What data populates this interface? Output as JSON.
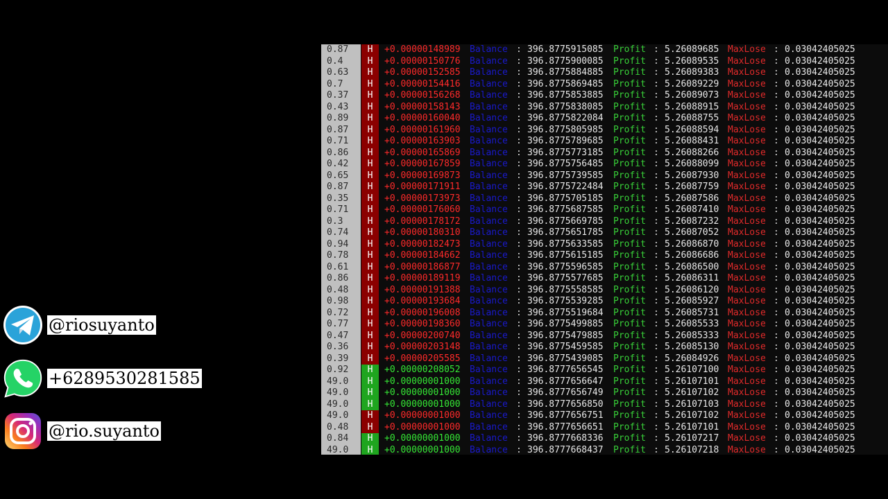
{
  "social": [
    {
      "icon": "telegram-icon",
      "handle": "@riosuyanto",
      "color": "#2aa3d9"
    },
    {
      "icon": "whatsapp-icon",
      "handle": "+6289530281585",
      "color": "#25d366"
    },
    {
      "icon": "instagram-icon",
      "handle": "@rio.suyanto",
      "color": "#d6249f"
    }
  ],
  "labels": {
    "balance": "Balance",
    "profit": "Profit",
    "maxlose": "MaxLose",
    "separator": ":"
  },
  "colors": {
    "loss": "#8b0000",
    "win": "#1fa51f",
    "balance_label": "#1a1acc",
    "profit_label": "#38d038",
    "maxlose_label": "#e02a2a"
  },
  "rows": [
    {
      "chance": "0.87",
      "hl": "H",
      "result": "loss",
      "amount": "+0.00000148989",
      "balance": "396.8775915085",
      "profit": "5.26089685",
      "maxlose": "0.03042405025"
    },
    {
      "chance": "0.4",
      "hl": "H",
      "result": "loss",
      "amount": "+0.00000150776",
      "balance": "396.8775900085",
      "profit": "5.26089535",
      "maxlose": "0.03042405025"
    },
    {
      "chance": "0.63",
      "hl": "H",
      "result": "loss",
      "amount": "+0.00000152585",
      "balance": "396.8775884885",
      "profit": "5.26089383",
      "maxlose": "0.03042405025"
    },
    {
      "chance": "0.7",
      "hl": "H",
      "result": "loss",
      "amount": "+0.00000154416",
      "balance": "396.8775869485",
      "profit": "5.26089229",
      "maxlose": "0.03042405025"
    },
    {
      "chance": "0.37",
      "hl": "H",
      "result": "loss",
      "amount": "+0.00000156268",
      "balance": "396.8775853885",
      "profit": "5.26089073",
      "maxlose": "0.03042405025"
    },
    {
      "chance": "0.43",
      "hl": "H",
      "result": "loss",
      "amount": "+0.00000158143",
      "balance": "396.8775838085",
      "profit": "5.26088915",
      "maxlose": "0.03042405025"
    },
    {
      "chance": "0.89",
      "hl": "H",
      "result": "loss",
      "amount": "+0.00000160040",
      "balance": "396.8775822084",
      "profit": "5.26088755",
      "maxlose": "0.03042405025"
    },
    {
      "chance": "0.87",
      "hl": "H",
      "result": "loss",
      "amount": "+0.00000161960",
      "balance": "396.8775805985",
      "profit": "5.26088594",
      "maxlose": "0.03042405025"
    },
    {
      "chance": "0.71",
      "hl": "H",
      "result": "loss",
      "amount": "+0.00000163903",
      "balance": "396.8775789685",
      "profit": "5.26088431",
      "maxlose": "0.03042405025"
    },
    {
      "chance": "0.86",
      "hl": "H",
      "result": "loss",
      "amount": "+0.00000165869",
      "balance": "396.8775773185",
      "profit": "5.26088266",
      "maxlose": "0.03042405025"
    },
    {
      "chance": "0.42",
      "hl": "H",
      "result": "loss",
      "amount": "+0.00000167859",
      "balance": "396.8775756485",
      "profit": "5.26088099",
      "maxlose": "0.03042405025"
    },
    {
      "chance": "0.65",
      "hl": "H",
      "result": "loss",
      "amount": "+0.00000169873",
      "balance": "396.8775739585",
      "profit": "5.26087930",
      "maxlose": "0.03042405025"
    },
    {
      "chance": "0.87",
      "hl": "H",
      "result": "loss",
      "amount": "+0.00000171911",
      "balance": "396.8775722484",
      "profit": "5.26087759",
      "maxlose": "0.03042405025"
    },
    {
      "chance": "0.35",
      "hl": "H",
      "result": "loss",
      "amount": "+0.00000173973",
      "balance": "396.8775705185",
      "profit": "5.26087586",
      "maxlose": "0.03042405025"
    },
    {
      "chance": "0.71",
      "hl": "H",
      "result": "loss",
      "amount": "+0.00000176060",
      "balance": "396.8775687585",
      "profit": "5.26087410",
      "maxlose": "0.03042405025"
    },
    {
      "chance": "0.3",
      "hl": "H",
      "result": "loss",
      "amount": "+0.00000178172",
      "balance": "396.8775669785",
      "profit": "5.26087232",
      "maxlose": "0.03042405025"
    },
    {
      "chance": "0.74",
      "hl": "H",
      "result": "loss",
      "amount": "+0.00000180310",
      "balance": "396.8775651785",
      "profit": "5.26087052",
      "maxlose": "0.03042405025"
    },
    {
      "chance": "0.94",
      "hl": "H",
      "result": "loss",
      "amount": "+0.00000182473",
      "balance": "396.8775633585",
      "profit": "5.26086870",
      "maxlose": "0.03042405025"
    },
    {
      "chance": "0.78",
      "hl": "H",
      "result": "loss",
      "amount": "+0.00000184662",
      "balance": "396.8775615185",
      "profit": "5.26086686",
      "maxlose": "0.03042405025"
    },
    {
      "chance": "0.61",
      "hl": "H",
      "result": "loss",
      "amount": "+0.00000186877",
      "balance": "396.8775596585",
      "profit": "5.26086500",
      "maxlose": "0.03042405025"
    },
    {
      "chance": "0.86",
      "hl": "H",
      "result": "loss",
      "amount": "+0.00000189119",
      "balance": "396.8775577685",
      "profit": "5.26086311",
      "maxlose": "0.03042405025"
    },
    {
      "chance": "0.48",
      "hl": "H",
      "result": "loss",
      "amount": "+0.00000191388",
      "balance": "396.8775558585",
      "profit": "5.26086120",
      "maxlose": "0.03042405025"
    },
    {
      "chance": "0.98",
      "hl": "H",
      "result": "loss",
      "amount": "+0.00000193684",
      "balance": "396.8775539285",
      "profit": "5.26085927",
      "maxlose": "0.03042405025"
    },
    {
      "chance": "0.72",
      "hl": "H",
      "result": "loss",
      "amount": "+0.00000196008",
      "balance": "396.8775519684",
      "profit": "5.26085731",
      "maxlose": "0.03042405025"
    },
    {
      "chance": "0.77",
      "hl": "H",
      "result": "loss",
      "amount": "+0.00000198360",
      "balance": "396.8775499885",
      "profit": "5.26085533",
      "maxlose": "0.03042405025"
    },
    {
      "chance": "0.47",
      "hl": "H",
      "result": "loss",
      "amount": "+0.00000200740",
      "balance": "396.8775479885",
      "profit": "5.26085333",
      "maxlose": "0.03042405025"
    },
    {
      "chance": "0.36",
      "hl": "H",
      "result": "loss",
      "amount": "+0.00000203148",
      "balance": "396.8775459585",
      "profit": "5.26085130",
      "maxlose": "0.03042405025"
    },
    {
      "chance": "0.39",
      "hl": "H",
      "result": "loss",
      "amount": "+0.00000205585",
      "balance": "396.8775439085",
      "profit": "5.26084926",
      "maxlose": "0.03042405025"
    },
    {
      "chance": "0.92",
      "hl": "H",
      "result": "win",
      "amount": "+0.00000208052",
      "balance": "396.8777656545",
      "profit": "5.26107100",
      "maxlose": "0.03042405025"
    },
    {
      "chance": "49.0",
      "hl": "H",
      "result": "win",
      "amount": "+0.00000001000",
      "balance": "396.8777656647",
      "profit": "5.26107101",
      "maxlose": "0.03042405025"
    },
    {
      "chance": "49.0",
      "hl": "H",
      "result": "win",
      "amount": "+0.00000001000",
      "balance": "396.8777656749",
      "profit": "5.26107102",
      "maxlose": "0.03042405025"
    },
    {
      "chance": "49.0",
      "hl": "H",
      "result": "win",
      "amount": "+0.00000001000",
      "balance": "396.8777656850",
      "profit": "5.26107103",
      "maxlose": "0.03042405025"
    },
    {
      "chance": "49.0",
      "hl": "H",
      "result": "loss",
      "amount": "+0.00000001000",
      "balance": "396.8777656751",
      "profit": "5.26107102",
      "maxlose": "0.03042405025"
    },
    {
      "chance": "0.48",
      "hl": "H",
      "result": "loss",
      "amount": "+0.00000001000",
      "balance": "396.8777656651",
      "profit": "5.26107101",
      "maxlose": "0.03042405025"
    },
    {
      "chance": "0.84",
      "hl": "H",
      "result": "win",
      "amount": "+0.00000001000",
      "balance": "396.8777668336",
      "profit": "5.26107217",
      "maxlose": "0.03042405025"
    },
    {
      "chance": "49.0",
      "hl": "H",
      "result": "win",
      "amount": "+0.00000001000",
      "balance": "396.8777668437",
      "profit": "5.26107218",
      "maxlose": "0.03042405025"
    }
  ]
}
